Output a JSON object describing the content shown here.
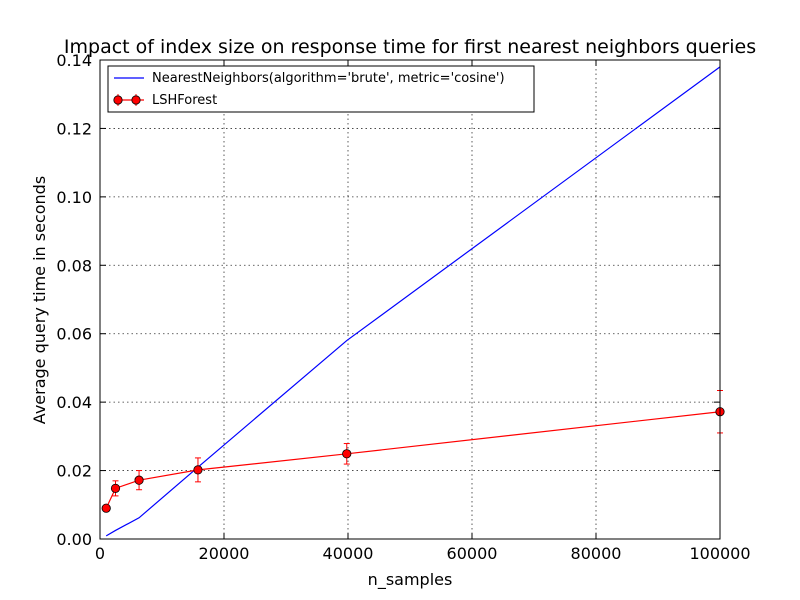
{
  "chart_data": {
    "type": "line",
    "title": "Impact of index size on response time for first nearest neighbors queries",
    "xlabel": "n_samples",
    "ylabel": "Average query time in seconds",
    "xlim": [
      0,
      100000
    ],
    "ylim": [
      0,
      0.14
    ],
    "xticks": [
      0,
      20000,
      40000,
      60000,
      80000,
      100000
    ],
    "xtick_labels": [
      "0",
      "20000",
      "40000",
      "60000",
      "80000",
      "100000"
    ],
    "yticks": [
      0.0,
      0.02,
      0.04,
      0.06,
      0.08,
      0.1,
      0.12,
      0.14
    ],
    "ytick_labels": [
      "0.00",
      "0.02",
      "0.04",
      "0.06",
      "0.08",
      "0.10",
      "0.12",
      "0.14"
    ],
    "grid": true,
    "legend_position": "top-left",
    "series": [
      {
        "name": "NearestNeighbors(algorithm='brute', metric='cosine')",
        "color": "#0000ff",
        "marker": "none",
        "x": [
          1000,
          2500,
          6300,
          15800,
          39800,
          100000
        ],
        "y": [
          0.0009,
          0.0025,
          0.0062,
          0.021,
          0.058,
          0.138
        ]
      },
      {
        "name": "LSHForest",
        "color": "#ff0000",
        "marker": "circle",
        "x": [
          1000,
          2500,
          6300,
          15800,
          39800,
          100000
        ],
        "y": [
          0.009,
          0.0148,
          0.0172,
          0.0202,
          0.0249,
          0.0372
        ],
        "yerr": [
          0.0008,
          0.0022,
          0.0028,
          0.0035,
          0.003,
          0.0062
        ]
      }
    ]
  }
}
